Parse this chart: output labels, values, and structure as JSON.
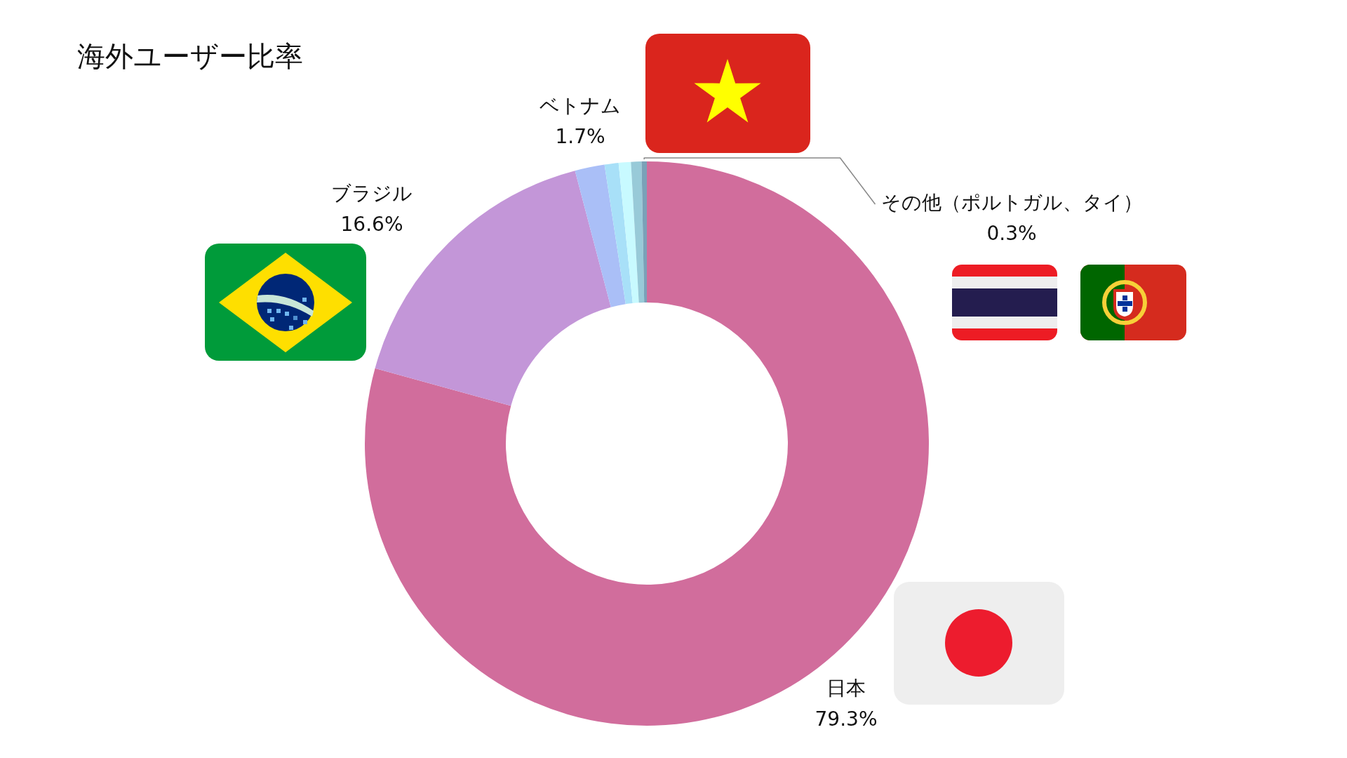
{
  "chart_data": {
    "type": "donut",
    "title": "海外ユーザー比率",
    "categories": [
      "日本",
      "ブラジル",
      "ベトナム",
      null,
      null,
      null,
      "その他（ポルトガル、タイ）"
    ],
    "values": [
      79.3,
      16.6,
      1.7,
      0.8,
      0.7,
      0.6,
      0.3
    ],
    "colors": [
      "#d16d9c",
      "#c396d8",
      "#aabff7",
      "#a8e0f8",
      "#c8faff",
      "#98cad8",
      "#7aa1b8"
    ],
    "value_labels": [
      "79.3%",
      "16.6%",
      "1.7%",
      null,
      null,
      null,
      "0.3%"
    ],
    "legend": false
  }
}
